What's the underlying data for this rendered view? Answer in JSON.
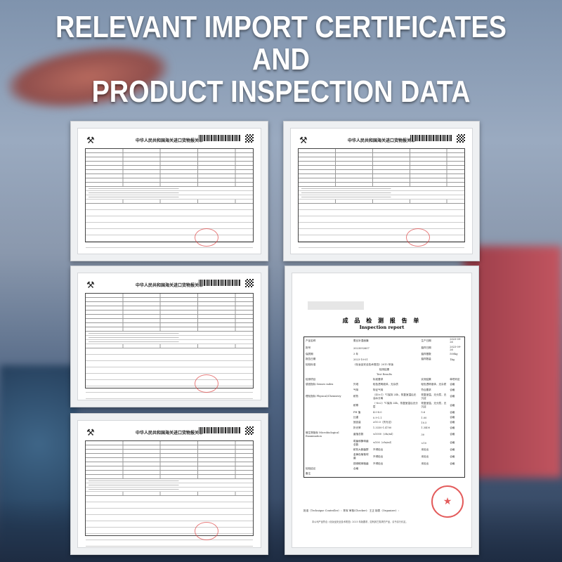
{
  "headline": [
    "RELEVANT IMPORT CERTIFICATES",
    "AND",
    "PRODUCT INSPECTION DATA"
  ],
  "customs_form": {
    "title": "中华人民共和国海关进口货物报关单",
    "logo_icon": "customs-emblem-icon"
  },
  "report": {
    "title_cn": "成 品 检 测 报 告 单",
    "title_en": "Inspection report",
    "info": [
      [
        "产品名称",
        "蚕丝补湿面膜",
        "生产日期",
        "2023-09-26"
      ],
      [
        "批号",
        "2023092607",
        "抽样日期",
        "2023-09-26"
      ],
      [
        "保质期",
        "3 年",
        "抽样基数",
        "500kg"
      ],
      [
        "报告日期",
        "2023-10-01",
        "抽样数量",
        "1kg"
      ]
    ],
    "standard": [
      "检验标准",
      "《化妆品安全技术规范》2015 年版"
    ],
    "results_cn": "检测结果",
    "results_en": "Test Results",
    "columns": [
      "检测项目",
      "",
      "标准要求",
      "实测结果",
      "单项判定"
    ],
    "rows": [
      [
        "感官指标 Senses index",
        "外观",
        "轻色透明液体，无杂质",
        "轻色透明液体，无杂质",
        "合格"
      ],
      [
        "",
        "气味",
        "特征气味",
        "符合要求",
        "合格"
      ],
      [
        "理化指标 Physical/Chemistry",
        "耐热",
        "（45±1）℃保持 24h，恢复室温后无油水分离",
        "恢复室温，无分层，无沉淀",
        "合格"
      ],
      [
        "",
        "耐寒",
        "（-8±2）℃保持 24h，恢复室温后无分层",
        "恢复室温，无分层，无沉淀",
        "合格"
      ],
      [
        "",
        "PH 值",
        "4.0-8.0",
        "5.6",
        "合格"
      ],
      [
        "",
        "比重",
        "0.9-1.1",
        "1.00",
        "合格"
      ],
      [
        "",
        "固含量",
        "≥10.0（折光法）",
        "10.5",
        "合格"
      ],
      [
        "",
        "折光率",
        "1.3330-1.4700",
        "1.3400",
        "合格"
      ],
      [
        "微生物指标 Microbiological Examination",
        "菌落总数",
        "≤1000（cfu/ml）",
        "30",
        "合格"
      ],
      [
        "",
        "霉菌和酵母菌总数",
        "≤100（cfu/ml）",
        "<10",
        "合格"
      ],
      [
        "",
        "耐热大肠菌群",
        "不得检出",
        "未检出",
        "合格"
      ],
      [
        "",
        "金黄色葡萄球菌",
        "不得检出",
        "未检出",
        "合格"
      ],
      [
        "",
        "铜绿假单胞菌",
        "不得检出",
        "未检出",
        "合格"
      ]
    ],
    "conclusion": [
      "检验结论",
      "合格"
    ],
    "remark": "备注",
    "signatures": "批准（Technique Controller）：陈军    审核(Checker)：王正    制表（Organizer）：",
    "footnote": "本公司产品符合《化妆品安全技术规范》2015 年版要求，如有其它需求的产品，请予另行约定。"
  }
}
